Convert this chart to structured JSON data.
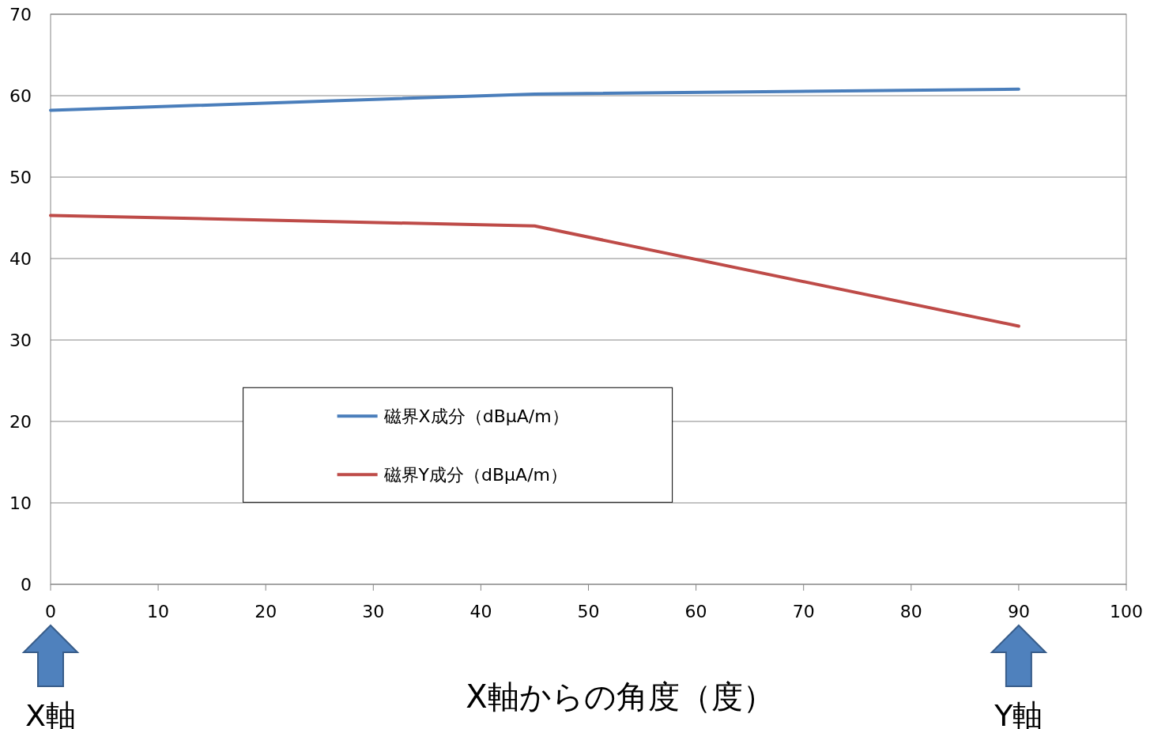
{
  "chart_data": {
    "type": "line",
    "xlabel": "X軸からの角度（度）",
    "x": [
      0,
      45,
      90
    ],
    "series": [
      {
        "name": "磁界X成分（dBμA/m）",
        "color": "#4a7ebb",
        "values": [
          58.2,
          60.2,
          60.8
        ]
      },
      {
        "name": "磁界Y成分（dBμA/m）",
        "color": "#be4b48",
        "values": [
          45.3,
          44.0,
          31.7
        ]
      }
    ],
    "xlim": [
      0,
      100
    ],
    "ylim": [
      0,
      70
    ],
    "xticks": [
      0,
      10,
      20,
      30,
      40,
      50,
      60,
      70,
      80,
      90,
      100
    ],
    "yticks": [
      0,
      10,
      20,
      30,
      40,
      50,
      60,
      70
    ],
    "grid": "y",
    "legend": "left",
    "annotations": [
      "X軸",
      "Y軸"
    ]
  }
}
